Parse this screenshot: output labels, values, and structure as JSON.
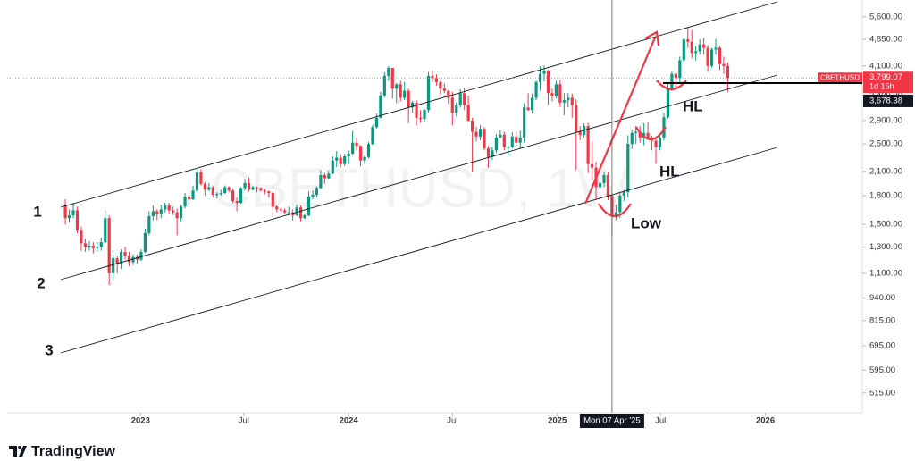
{
  "chart_data": {
    "type": "candlestick",
    "symbol": "CBETHUSD",
    "watermark": "CBETHUSD, 1W",
    "log_scale": true,
    "grid": false,
    "up_color": "#089981",
    "down_color": "#f23645",
    "ylim": [
      454,
      6230
    ],
    "yticks": [
      {
        "value": 515,
        "label": "515.00"
      },
      {
        "value": 595,
        "label": "595.00"
      },
      {
        "value": 695,
        "label": "695.00"
      },
      {
        "value": 815,
        "label": "815.00"
      },
      {
        "value": 940,
        "label": "940.00"
      },
      {
        "value": 1100,
        "label": "1,100.00"
      },
      {
        "value": 1300,
        "label": "1,300.00"
      },
      {
        "value": 1500,
        "label": "1,500.00"
      },
      {
        "value": 1800,
        "label": "1,800.00"
      },
      {
        "value": 2100,
        "label": "2,100.00"
      },
      {
        "value": 2500,
        "label": "2,500.00"
      },
      {
        "value": 2900,
        "label": "2,900.00"
      },
      {
        "value": 3400,
        "label": "3,400.00"
      },
      {
        "value": 4100,
        "label": "4,100.00"
      },
      {
        "value": 4850,
        "label": "4,850.00"
      },
      {
        "value": 5600,
        "label": "5,600.00"
      }
    ],
    "xlim": [
      "2022-05-12",
      "2026-06-20"
    ],
    "xticks": [
      {
        "value": "2023-01-01",
        "label": "2023"
      },
      {
        "value": "2023-07-01",
        "label": "Jul"
      },
      {
        "value": "2024-01-01",
        "label": "2024"
      },
      {
        "value": "2024-07-01",
        "label": "Jul"
      },
      {
        "value": "2025-01-01",
        "label": "2025"
      },
      {
        "value": "2025-07-01",
        "label": "Jul"
      },
      {
        "value": "2026-01-01",
        "label": "2026"
      }
    ],
    "x": [
      "2022-08-22",
      "2022-08-29",
      "2022-09-05",
      "2022-09-12",
      "2022-09-19",
      "2022-09-26",
      "2022-10-03",
      "2022-10-10",
      "2022-10-17",
      "2022-10-24",
      "2022-10-31",
      "2022-11-07",
      "2022-11-14",
      "2022-11-21",
      "2022-11-28",
      "2022-12-05",
      "2022-12-12",
      "2022-12-19",
      "2022-12-26",
      "2023-01-02",
      "2023-01-09",
      "2023-01-16",
      "2023-01-23",
      "2023-01-30",
      "2023-02-06",
      "2023-02-13",
      "2023-02-20",
      "2023-02-27",
      "2023-03-06",
      "2023-03-13",
      "2023-03-20",
      "2023-03-27",
      "2023-04-03",
      "2023-04-10",
      "2023-04-17",
      "2023-04-24",
      "2023-05-01",
      "2023-05-08",
      "2023-05-15",
      "2023-05-22",
      "2023-05-29",
      "2023-06-05",
      "2023-06-12",
      "2023-06-19",
      "2023-06-26",
      "2023-07-03",
      "2023-07-10",
      "2023-07-17",
      "2023-07-24",
      "2023-07-31",
      "2023-08-07",
      "2023-08-14",
      "2023-08-21",
      "2023-08-28",
      "2023-09-04",
      "2023-09-11",
      "2023-09-18",
      "2023-09-25",
      "2023-10-02",
      "2023-10-09",
      "2023-10-16",
      "2023-10-23",
      "2023-10-30",
      "2023-11-06",
      "2023-11-13",
      "2023-11-20",
      "2023-11-27",
      "2023-12-04",
      "2023-12-11",
      "2023-12-18",
      "2023-12-25",
      "2024-01-01",
      "2024-01-08",
      "2024-01-15",
      "2024-01-22",
      "2024-01-29",
      "2024-02-05",
      "2024-02-12",
      "2024-02-19",
      "2024-02-26",
      "2024-03-04",
      "2024-03-11",
      "2024-03-18",
      "2024-03-25",
      "2024-04-01",
      "2024-04-08",
      "2024-04-15",
      "2024-04-22",
      "2024-04-29",
      "2024-05-06",
      "2024-05-13",
      "2024-05-20",
      "2024-05-27",
      "2024-06-03",
      "2024-06-10",
      "2024-06-17",
      "2024-06-24",
      "2024-07-01",
      "2024-07-08",
      "2024-07-15",
      "2024-07-22",
      "2024-07-29",
      "2024-08-05",
      "2024-08-12",
      "2024-08-19",
      "2024-08-26",
      "2024-09-02",
      "2024-09-09",
      "2024-09-16",
      "2024-09-23",
      "2024-09-30",
      "2024-10-07",
      "2024-10-14",
      "2024-10-21",
      "2024-10-28",
      "2024-11-04",
      "2024-11-11",
      "2024-11-18",
      "2024-11-25",
      "2024-12-02",
      "2024-12-09",
      "2024-12-16",
      "2024-12-23",
      "2024-12-30",
      "2025-01-06",
      "2025-01-13",
      "2025-01-20",
      "2025-01-27",
      "2025-02-03",
      "2025-02-10",
      "2025-02-17",
      "2025-02-24",
      "2025-03-03",
      "2025-03-10",
      "2025-03-17",
      "2025-03-24",
      "2025-03-31",
      "2025-04-07",
      "2025-04-14",
      "2025-04-21",
      "2025-04-28",
      "2025-05-05",
      "2025-05-12",
      "2025-05-19",
      "2025-05-26",
      "2025-06-02",
      "2025-06-09",
      "2025-06-16",
      "2025-06-23",
      "2025-06-30",
      "2025-07-07",
      "2025-07-14",
      "2025-07-21",
      "2025-07-28",
      "2025-08-04",
      "2025-08-11",
      "2025-08-18",
      "2025-08-25",
      "2025-09-01",
      "2025-09-08",
      "2025-09-15",
      "2025-09-22",
      "2025-09-29",
      "2025-10-06",
      "2025-10-13",
      "2025-10-20",
      "2025-10-27"
    ],
    "ohlc": [
      [
        1700,
        1760,
        1500,
        1560
      ],
      [
        1560,
        1650,
        1520,
        1590
      ],
      [
        1590,
        1720,
        1560,
        1640
      ],
      [
        1640,
        1680,
        1420,
        1450
      ],
      [
        1450,
        1480,
        1270,
        1330
      ],
      [
        1330,
        1370,
        1260,
        1300
      ],
      [
        1300,
        1350,
        1270,
        1310
      ],
      [
        1310,
        1340,
        1250,
        1290
      ],
      [
        1290,
        1340,
        1260,
        1300
      ],
      [
        1300,
        1380,
        1270,
        1340
      ],
      [
        1340,
        1640,
        1330,
        1560
      ],
      [
        1560,
        1590,
        1020,
        1100
      ],
      [
        1100,
        1240,
        1050,
        1210
      ],
      [
        1210,
        1230,
        1100,
        1170
      ],
      [
        1170,
        1280,
        1130,
        1260
      ],
      [
        1260,
        1300,
        1200,
        1230
      ],
      [
        1230,
        1260,
        1150,
        1180
      ],
      [
        1180,
        1240,
        1160,
        1220
      ],
      [
        1220,
        1240,
        1170,
        1200
      ],
      [
        1200,
        1280,
        1190,
        1260
      ],
      [
        1260,
        1460,
        1250,
        1420
      ],
      [
        1420,
        1630,
        1400,
        1580
      ],
      [
        1580,
        1690,
        1540,
        1630
      ],
      [
        1630,
        1650,
        1540,
        1600
      ],
      [
        1600,
        1700,
        1560,
        1650
      ],
      [
        1650,
        1720,
        1620,
        1690
      ],
      [
        1690,
        1720,
        1600,
        1640
      ],
      [
        1640,
        1680,
        1590,
        1620
      ],
      [
        1620,
        1660,
        1400,
        1560
      ],
      [
        1560,
        1700,
        1530,
        1680
      ],
      [
        1680,
        1830,
        1660,
        1790
      ],
      [
        1790,
        1830,
        1700,
        1760
      ],
      [
        1760,
        1920,
        1750,
        1860
      ],
      [
        1860,
        2140,
        1840,
        2090
      ],
      [
        2090,
        2130,
        1920,
        1940
      ],
      [
        1940,
        1960,
        1800,
        1870
      ],
      [
        1870,
        1950,
        1850,
        1900
      ],
      [
        1900,
        1920,
        1780,
        1810
      ],
      [
        1810,
        1840,
        1770,
        1820
      ],
      [
        1820,
        1870,
        1800,
        1830
      ],
      [
        1830,
        1920,
        1820,
        1900
      ],
      [
        1900,
        1910,
        1840,
        1860
      ],
      [
        1860,
        1880,
        1720,
        1740
      ],
      [
        1740,
        1780,
        1630,
        1720
      ],
      [
        1720,
        1900,
        1710,
        1890
      ],
      [
        1890,
        2000,
        1860,
        1950
      ],
      [
        1950,
        2020,
        1850,
        1870
      ],
      [
        1870,
        1920,
        1860,
        1900
      ],
      [
        1900,
        1910,
        1840,
        1890
      ],
      [
        1890,
        1900,
        1850,
        1860
      ],
      [
        1860,
        1880,
        1820,
        1850
      ],
      [
        1850,
        1860,
        1780,
        1830
      ],
      [
        1830,
        1850,
        1570,
        1680
      ],
      [
        1680,
        1690,
        1620,
        1650
      ],
      [
        1650,
        1670,
        1610,
        1640
      ],
      [
        1640,
        1660,
        1600,
        1620
      ],
      [
        1620,
        1680,
        1590,
        1620
      ],
      [
        1620,
        1650,
        1540,
        1590
      ],
      [
        1590,
        1700,
        1580,
        1670
      ],
      [
        1670,
        1690,
        1530,
        1560
      ],
      [
        1560,
        1610,
        1550,
        1590
      ],
      [
        1590,
        1850,
        1580,
        1790
      ],
      [
        1790,
        1860,
        1760,
        1810
      ],
      [
        1810,
        1910,
        1780,
        1890
      ],
      [
        1890,
        2120,
        1880,
        2050
      ],
      [
        2050,
        2080,
        1940,
        2010
      ],
      [
        2010,
        2110,
        2000,
        2070
      ],
      [
        2070,
        2310,
        2060,
        2250
      ],
      [
        2250,
        2390,
        2160,
        2290
      ],
      [
        2290,
        2340,
        2150,
        2200
      ],
      [
        2200,
        2350,
        2170,
        2310
      ],
      [
        2310,
        2400,
        2200,
        2350
      ],
      [
        2350,
        2710,
        2340,
        2520
      ],
      [
        2520,
        2600,
        2400,
        2470
      ],
      [
        2470,
        2480,
        2170,
        2250
      ],
      [
        2250,
        2320,
        2200,
        2300
      ],
      [
        2300,
        2530,
        2280,
        2500
      ],
      [
        2500,
        2820,
        2480,
        2780
      ],
      [
        2780,
        3030,
        2760,
        2950
      ],
      [
        2950,
        3480,
        2940,
        3400
      ],
      [
        3400,
        3940,
        3360,
        3850
      ],
      [
        3850,
        4090,
        3730,
        4050
      ],
      [
        4050,
        4050,
        3330,
        3550
      ],
      [
        3550,
        3680,
        3240,
        3650
      ],
      [
        3650,
        3730,
        3280,
        3350
      ],
      [
        3350,
        3700,
        3300,
        3500
      ],
      [
        3500,
        3550,
        2850,
        3150
      ],
      [
        3150,
        3280,
        3050,
        3250
      ],
      [
        3250,
        3300,
        2810,
        2950
      ],
      [
        2950,
        3100,
        2860,
        2930
      ],
      [
        2930,
        3120,
        2880,
        3100
      ],
      [
        3100,
        3940,
        3050,
        3850
      ],
      [
        3850,
        3980,
        3700,
        3800
      ],
      [
        3800,
        3890,
        3620,
        3700
      ],
      [
        3700,
        3730,
        3420,
        3550
      ],
      [
        3550,
        3670,
        3450,
        3500
      ],
      [
        3500,
        3520,
        3230,
        3350
      ],
      [
        3350,
        3480,
        2810,
        3050
      ],
      [
        3050,
        3250,
        2980,
        3200
      ],
      [
        3200,
        3540,
        3150,
        3450
      ],
      [
        3450,
        3560,
        3100,
        3200
      ],
      [
        3200,
        3400,
        2880,
        2900
      ],
      [
        2900,
        2950,
        2100,
        2700
      ],
      [
        2700,
        2790,
        2540,
        2620
      ],
      [
        2620,
        2820,
        2560,
        2750
      ],
      [
        2750,
        2780,
        2400,
        2430
      ],
      [
        2430,
        2470,
        2150,
        2300
      ],
      [
        2300,
        2450,
        2260,
        2400
      ],
      [
        2400,
        2660,
        2360,
        2600
      ],
      [
        2600,
        2730,
        2590,
        2650
      ],
      [
        2650,
        2700,
        2400,
        2450
      ],
      [
        2450,
        2480,
        2330,
        2450
      ],
      [
        2450,
        2690,
        2430,
        2620
      ],
      [
        2620,
        2700,
        2460,
        2520
      ],
      [
        2520,
        2720,
        2430,
        2600
      ],
      [
        2600,
        3240,
        2520,
        3150
      ],
      [
        3150,
        3450,
        3080,
        3100
      ],
      [
        3100,
        3440,
        3030,
        3350
      ],
      [
        3350,
        3740,
        3300,
        3700
      ],
      [
        3700,
        4090,
        3500,
        3900
      ],
      [
        3900,
        4110,
        3720,
        3970
      ],
      [
        3970,
        4000,
        3200,
        3450
      ],
      [
        3450,
        3550,
        3280,
        3380
      ],
      [
        3380,
        3730,
        3340,
        3650
      ],
      [
        3650,
        3750,
        3160,
        3250
      ],
      [
        3250,
        3450,
        3000,
        3300
      ],
      [
        3300,
        3450,
        3150,
        3350
      ],
      [
        3350,
        3440,
        2950,
        3200
      ],
      [
        3200,
        3310,
        2120,
        2700
      ],
      [
        2700,
        2800,
        2560,
        2650
      ],
      [
        2650,
        2850,
        2600,
        2800
      ],
      [
        2800,
        2860,
        2080,
        2200
      ],
      [
        2200,
        2550,
        1990,
        2150
      ],
      [
        2150,
        2230,
        1760,
        1900
      ],
      [
        1900,
        2070,
        1860,
        1950
      ],
      [
        1950,
        2100,
        1900,
        2050
      ],
      [
        2050,
        2100,
        1750,
        1800
      ],
      [
        1800,
        1830,
        1390,
        1580
      ],
      [
        1580,
        1700,
        1540,
        1620
      ],
      [
        1620,
        1830,
        1560,
        1800
      ],
      [
        1800,
        1870,
        1740,
        1840
      ],
      [
        1840,
        2640,
        1780,
        2500
      ],
      [
        2500,
        2740,
        2420,
        2680
      ],
      [
        2680,
        2800,
        2500,
        2700
      ],
      [
        2700,
        2800,
        2520,
        2600
      ],
      [
        2600,
        2850,
        2480,
        2680
      ],
      [
        2680,
        2880,
        2580,
        2600
      ],
      [
        2600,
        2630,
        2400,
        2550
      ],
      [
        2550,
        2620,
        2200,
        2450
      ],
      [
        2450,
        2650,
        2400,
        2600
      ],
      [
        2600,
        3050,
        2560,
        2960
      ],
      [
        2960,
        3680,
        2940,
        3550
      ],
      [
        3550,
        3950,
        3500,
        3900
      ],
      [
        3900,
        3930,
        3580,
        3800
      ],
      [
        3800,
        4350,
        3650,
        4250
      ],
      [
        4250,
        4900,
        4200,
        4850
      ],
      [
        4850,
        5230,
        4600,
        4780
      ],
      [
        4780,
        5150,
        4300,
        4450
      ],
      [
        4450,
        4650,
        4250,
        4500
      ],
      [
        4500,
        4850,
        4400,
        4700
      ],
      [
        4700,
        4900,
        4400,
        4600
      ],
      [
        4600,
        4680,
        3950,
        4100
      ],
      [
        4100,
        4600,
        4050,
        4550
      ],
      [
        4550,
        4870,
        4400,
        4600
      ],
      [
        4600,
        4650,
        4000,
        4150
      ],
      [
        4150,
        4350,
        3900,
        4100
      ],
      [
        4100,
        4190,
        3480,
        3799.07
      ]
    ],
    "last_price": {
      "value": 3799.07,
      "label": "3,799.07",
      "countdown": "1d 15h"
    },
    "level": {
      "value": 3678.38,
      "label": "3,678.38"
    },
    "crosshair": {
      "x": "2025-04-07",
      "label": "Mon 07 Apr '25"
    },
    "annotations": {
      "channel_1": "1",
      "channel_2": "2",
      "channel_3": "3",
      "low": "Low",
      "hl_1": "HL",
      "hl_2": "HL"
    }
  },
  "logo": "TradingView"
}
